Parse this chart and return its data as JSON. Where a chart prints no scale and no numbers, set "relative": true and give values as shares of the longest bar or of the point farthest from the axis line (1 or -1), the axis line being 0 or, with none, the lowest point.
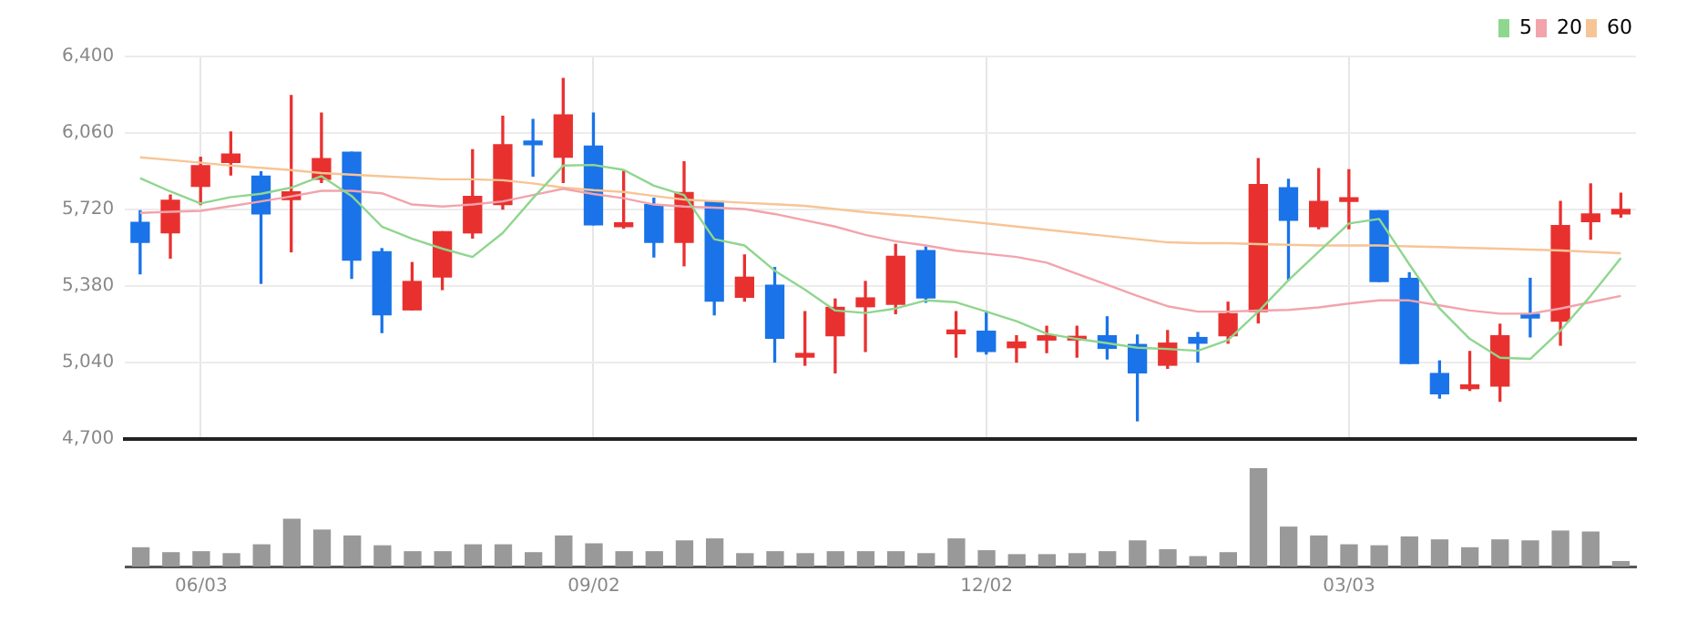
{
  "chart_data": [
    {
      "type": "candlestick",
      "categories": [
        null,
        null,
        null,
        null,
        null,
        null,
        null,
        null,
        null,
        null,
        null,
        null,
        null,
        null,
        null,
        null,
        null,
        null,
        null,
        null,
        null,
        null,
        null,
        null,
        null,
        null,
        null,
        null,
        null,
        null,
        null,
        null,
        null,
        null,
        null,
        null,
        null,
        null,
        null,
        null,
        null,
        null,
        null,
        null,
        null,
        null,
        null,
        null,
        null,
        null
      ],
      "ohlc": [
        [
          5663,
          5714,
          5434,
          5574
        ],
        [
          5616,
          5784,
          5504,
          5761
        ],
        [
          5823,
          5952,
          5742,
          5915
        ],
        [
          5929,
          6064,
          5873,
          5966
        ],
        [
          5868,
          5887,
          5392,
          5700
        ],
        [
          5764,
          6226,
          5532,
          5798
        ],
        [
          5854,
          6148,
          5840,
          5946
        ],
        [
          5974,
          5974,
          5414,
          5495
        ],
        [
          5532,
          5546,
          5173,
          5252
        ],
        [
          5274,
          5484,
          5274,
          5400
        ],
        [
          5420,
          5621,
          5364,
          5621
        ],
        [
          5616,
          5985,
          5593,
          5778
        ],
        [
          5742,
          6134,
          5722,
          6008
        ],
        [
          6016,
          6120,
          5868,
          6008
        ],
        [
          5952,
          6302,
          5840,
          6140
        ],
        [
          6002,
          6148,
          5652,
          5652
        ],
        [
          5644,
          5890,
          5638,
          5658
        ],
        [
          5742,
          5770,
          5509,
          5574
        ],
        [
          5574,
          5932,
          5470,
          5795
        ],
        [
          5756,
          5756,
          5252,
          5313
        ],
        [
          5330,
          5518,
          5313,
          5419
        ],
        [
          5383,
          5462,
          5042,
          5148
        ],
        [
          5064,
          5266,
          5028,
          5078
        ],
        [
          5159,
          5322,
          4994,
          5285
        ],
        [
          5288,
          5400,
          5089,
          5327
        ],
        [
          5299,
          5565,
          5257,
          5512
        ],
        [
          5537,
          5554,
          5308,
          5327
        ],
        [
          5168,
          5266,
          5064,
          5179
        ],
        [
          5179,
          5266,
          5078,
          5089
        ],
        [
          5106,
          5159,
          5042,
          5131
        ],
        [
          5140,
          5201,
          5084,
          5159
        ],
        [
          5140,
          5201,
          5064,
          5151
        ],
        [
          5159,
          5243,
          5056,
          5103
        ],
        [
          5120,
          5162,
          4781,
          4994
        ],
        [
          5028,
          5182,
          5014,
          5126
        ],
        [
          5151,
          5173,
          5042,
          5126
        ],
        [
          5159,
          5308,
          5126,
          5257
        ],
        [
          5266,
          5946,
          5216,
          5831
        ],
        [
          5817,
          5854,
          5406,
          5672
        ],
        [
          5644,
          5901,
          5635,
          5756
        ],
        [
          5756,
          5896,
          5635,
          5767
        ],
        [
          5714,
          5714,
          5400,
          5400
        ],
        [
          5414,
          5439,
          5036,
          5036
        ],
        [
          4991,
          5047,
          4882,
          4901
        ],
        [
          4924,
          5089,
          4916,
          4935
        ],
        [
          4935,
          5210,
          4868,
          5159
        ],
        [
          5252,
          5414,
          5154,
          5238
        ],
        [
          5224,
          5756,
          5117,
          5649
        ],
        [
          5666,
          5834,
          5588,
          5700
        ],
        [
          5700,
          5792,
          5686,
          5720
        ]
      ],
      "colors": [
        "#1a73e8",
        "#e8312f",
        "#e8312f",
        "#e8312f",
        "#1a73e8",
        "#e8312f",
        "#e8312f",
        "#1a73e8",
        "#1a73e8",
        "#e8312f",
        "#e8312f",
        "#e8312f",
        "#e8312f",
        "#1a73e8",
        "#e8312f",
        "#1a73e8",
        "#e8312f",
        "#1a73e8",
        "#e8312f",
        "#1a73e8",
        "#e8312f",
        "#1a73e8",
        "#e8312f",
        "#e8312f",
        "#e8312f",
        "#e8312f",
        "#1a73e8",
        "#e8312f",
        "#1a73e8",
        "#e8312f",
        "#e8312f",
        "#e8312f",
        "#1a73e8",
        "#1a73e8",
        "#e8312f",
        "#1a73e8",
        "#e8312f",
        "#e8312f",
        "#1a73e8",
        "#e8312f",
        "#e8312f",
        "#1a73e8",
        "#1a73e8",
        "#1a73e8",
        "#e8312f",
        "#e8312f",
        "#1a73e8",
        "#e8312f",
        "#e8312f",
        "#e8312f"
      ],
      "series": [
        {
          "type": "line",
          "name": "5",
          "color": "#8fd68f",
          "values": [
            5859,
            5800,
            5747,
            5775,
            5790,
            5817,
            5868,
            5780,
            5644,
            5590,
            5546,
            5509,
            5616,
            5770,
            5915,
            5918,
            5896,
            5826,
            5784,
            5588,
            5560,
            5448,
            5364,
            5271,
            5260,
            5280,
            5316,
            5308,
            5266,
            5224,
            5168,
            5145,
            5126,
            5106,
            5100,
            5092,
            5140,
            5266,
            5406,
            5532,
            5658,
            5678,
            5476,
            5280,
            5145,
            5061,
            5056,
            5182,
            5336,
            5504
          ]
        },
        {
          "type": "line",
          "name": "20",
          "color": "#f2a4ac",
          "values": [
            5705,
            5710,
            5714,
            5735,
            5756,
            5778,
            5803,
            5803,
            5792,
            5742,
            5733,
            5742,
            5756,
            5784,
            5812,
            5789,
            5770,
            5742,
            5733,
            5728,
            5722,
            5700,
            5672,
            5644,
            5607,
            5579,
            5560,
            5537,
            5523,
            5509,
            5484,
            5434,
            5386,
            5336,
            5290,
            5266,
            5266,
            5271,
            5274,
            5285,
            5302,
            5316,
            5316,
            5294,
            5271,
            5257,
            5257,
            5280,
            5308,
            5336
          ]
        },
        {
          "type": "line",
          "name": "60",
          "color": "#f7c595",
          "values": [
            5952,
            5940,
            5928,
            5915,
            5905,
            5895,
            5882,
            5875,
            5868,
            5861,
            5854,
            5854,
            5850,
            5836,
            5817,
            5806,
            5798,
            5780,
            5764,
            5757,
            5750,
            5743,
            5736,
            5722,
            5708,
            5697,
            5686,
            5672,
            5658,
            5644,
            5630,
            5616,
            5602,
            5588,
            5574,
            5570,
            5570,
            5566,
            5563,
            5560,
            5560,
            5560,
            5556,
            5553,
            5549,
            5546,
            5542,
            5538,
            5532,
            5526
          ]
        }
      ],
      "ylim": [
        4700,
        6400
      ],
      "yticks": [
        {
          "value": 4700,
          "label": "4,700"
        },
        {
          "value": 5040,
          "label": "5,040"
        },
        {
          "value": 5380,
          "label": "5,380"
        },
        {
          "value": 5720,
          "label": "5,720"
        },
        {
          "value": 6060,
          "label": "6,060"
        },
        {
          "value": 6400,
          "label": "6,400"
        }
      ],
      "grid": true,
      "legend": "top right",
      "tick_labels": "y"
    },
    {
      "type": "bar",
      "relative": true,
      "color": "#999999",
      "categories": [
        null,
        null,
        "06/03",
        null,
        null,
        null,
        null,
        null,
        null,
        null,
        null,
        null,
        null,
        null,
        null,
        "09/02",
        null,
        null,
        null,
        null,
        null,
        null,
        null,
        null,
        null,
        null,
        null,
        null,
        "12/02",
        null,
        null,
        null,
        null,
        null,
        null,
        null,
        null,
        null,
        null,
        null,
        "03/03",
        null,
        null,
        null,
        null,
        null,
        null,
        null,
        null,
        null
      ],
      "values": [
        0.19,
        0.14,
        0.15,
        0.13,
        0.22,
        0.48,
        0.37,
        0.31,
        0.21,
        0.15,
        0.15,
        0.22,
        0.22,
        0.14,
        0.31,
        0.23,
        0.15,
        0.15,
        0.26,
        0.28,
        0.13,
        0.15,
        0.13,
        0.15,
        0.15,
        0.15,
        0.13,
        0.28,
        0.16,
        0.12,
        0.12,
        0.13,
        0.15,
        0.26,
        0.17,
        0.1,
        0.14,
        1,
        0.4,
        0.31,
        0.22,
        0.21,
        0.3,
        0.27,
        0.19,
        0.27,
        0.26,
        0.36,
        0.35,
        0.05
      ]
    }
  ]
}
